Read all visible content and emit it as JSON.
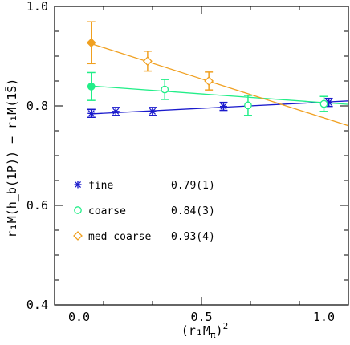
{
  "chart_data": {
    "type": "scatter",
    "xlabel": "(r₁M",
    "xlabel_sub": "π",
    "xlabel_close": ")",
    "xlabel_sup": "2",
    "ylabel": "r₁M(h_b(1P)) − r₁M(1S̄)",
    "ylabel_plain": "r",
    "xlim": [
      -0.1,
      1.1
    ],
    "ylim": [
      0.4,
      1.0
    ],
    "xticks": [
      0.0,
      0.5,
      1.0
    ],
    "xtick_labels": [
      "0.0",
      "0.5",
      "1.0"
    ],
    "yticks": [
      0.4,
      0.6,
      0.8,
      1.0
    ],
    "ytick_labels": [
      "0.4",
      "0.6",
      "0.8",
      "1.0"
    ],
    "grid": false,
    "legend_position": "lower-left",
    "series": [
      {
        "name": "fine",
        "fit_label": "0.79(1)",
        "color": "#1a1acc",
        "marker": "star",
        "points": [
          {
            "x": 0.05,
            "y": 0.785,
            "err": 0.008
          },
          {
            "x": 0.15,
            "y": 0.789,
            "err": 0.008
          },
          {
            "x": 0.3,
            "y": 0.789,
            "err": 0.008
          },
          {
            "x": 0.59,
            "y": 0.799,
            "err": 0.008
          },
          {
            "x": 1.02,
            "y": 0.807,
            "err": 0.008
          }
        ],
        "fit_line": [
          {
            "x": 0.05,
            "y": 0.784
          },
          {
            "x": 1.1,
            "y": 0.81
          }
        ],
        "extrapolated": {
          "x": 0.05,
          "y": 0.785,
          "err": 0.008
        }
      },
      {
        "name": "coarse",
        "fit_label": "0.84(3)",
        "color": "#22ee88",
        "marker": "circle",
        "points": [
          {
            "x": 0.35,
            "y": 0.833,
            "err": 0.02
          },
          {
            "x": 0.69,
            "y": 0.801,
            "err": 0.02
          },
          {
            "x": 1.0,
            "y": 0.804,
            "err": 0.015
          }
        ],
        "fit_line": [
          {
            "x": 0.05,
            "y": 0.84
          },
          {
            "x": 1.1,
            "y": 0.803
          }
        ],
        "extrapolated": {
          "x": 0.05,
          "y": 0.839,
          "err": 0.028
        }
      },
      {
        "name": "med coarse",
        "fit_label": "0.93(4)",
        "color": "#f0a020",
        "marker": "diamond",
        "points": [
          {
            "x": 0.28,
            "y": 0.89,
            "err": 0.02
          },
          {
            "x": 0.53,
            "y": 0.85,
            "err": 0.018
          }
        ],
        "fit_line": [
          {
            "x": 0.05,
            "y": 0.925
          },
          {
            "x": 1.1,
            "y": 0.76
          }
        ],
        "extrapolated": {
          "x": 0.05,
          "y": 0.927,
          "err": 0.042
        }
      }
    ]
  }
}
